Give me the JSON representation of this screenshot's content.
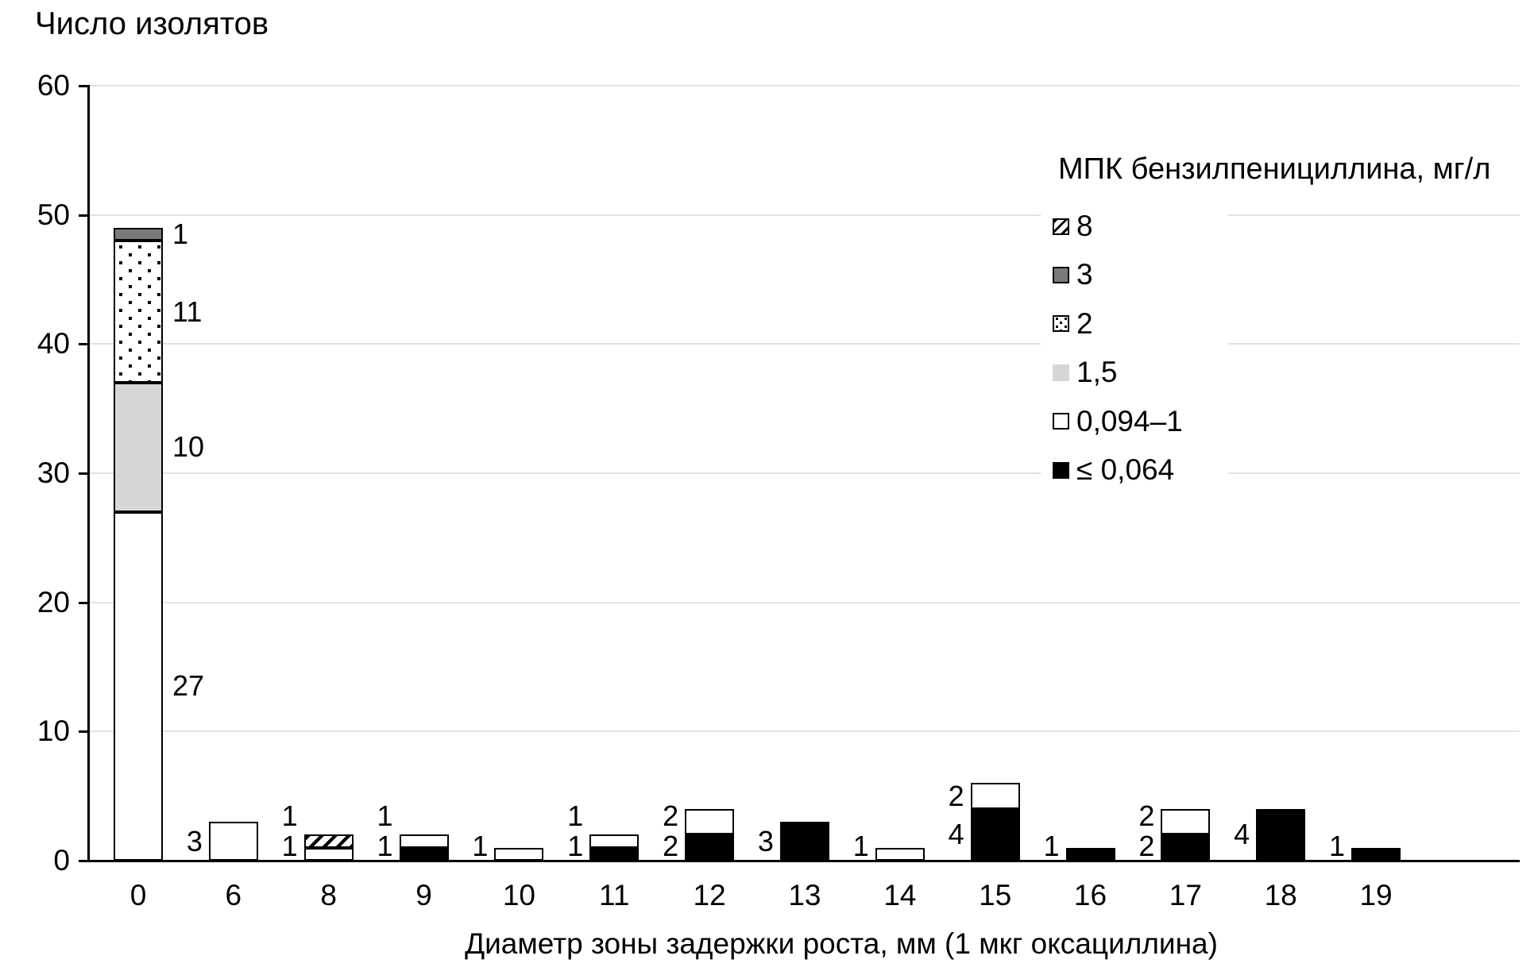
{
  "chart_title": "Число изолятов",
  "x_axis_title": "Диаметр зоны задержки роста, мм (1 мкг оксациллина)",
  "legend": {
    "title": "МПК бензилпенициллина, мг/л",
    "items": [
      {
        "label": "8",
        "style": "hatch"
      },
      {
        "label": "3",
        "style": "darkgray"
      },
      {
        "label": "2",
        "style": "dots"
      },
      {
        "label": "1,5",
        "style": "lightgray"
      },
      {
        "label": "0,094–1",
        "style": "white"
      },
      {
        "label": "≤ 0,064",
        "style": "black"
      }
    ]
  },
  "colors": {
    "black": "#000000",
    "white": "#ffffff",
    "light_gray": "#d6d6d6",
    "dark_gray": "#7a7a7a",
    "gridline": "#e2e2e2",
    "axis": "#000000"
  },
  "chart_data": {
    "type": "bar",
    "stacked": true,
    "title": "Число изолятов",
    "xlabel": "Диаметр зоны задержки роста, мм (1 мкг оксациллина)",
    "ylabel": "Число изолятов",
    "categories": [
      "0",
      "6",
      "8",
      "9",
      "10",
      "11",
      "12",
      "13",
      "14",
      "15",
      "16",
      "17",
      "18",
      "19"
    ],
    "series": [
      {
        "name": "≤ 0,064",
        "style": "black",
        "values": [
          0,
          0,
          0,
          1,
          0,
          1,
          2,
          3,
          0,
          4,
          1,
          2,
          4,
          1
        ]
      },
      {
        "name": "0,094–1",
        "style": "white",
        "values": [
          27,
          3,
          1,
          1,
          1,
          1,
          2,
          0,
          1,
          2,
          0,
          2,
          0,
          0
        ]
      },
      {
        "name": "1,5",
        "style": "lightgray",
        "values": [
          10,
          0,
          0,
          0,
          0,
          0,
          0,
          0,
          0,
          0,
          0,
          0,
          0,
          0
        ]
      },
      {
        "name": "2",
        "style": "dots",
        "values": [
          11,
          0,
          0,
          0,
          0,
          0,
          0,
          0,
          0,
          0,
          0,
          0,
          0,
          0
        ]
      },
      {
        "name": "3",
        "style": "darkgray",
        "values": [
          1,
          0,
          0,
          0,
          0,
          0,
          0,
          0,
          0,
          0,
          0,
          0,
          0,
          0
        ]
      },
      {
        "name": "8",
        "style": "hatch",
        "values": [
          0,
          0,
          1,
          0,
          0,
          0,
          0,
          0,
          0,
          0,
          0,
          0,
          0,
          0
        ]
      }
    ],
    "ylim": [
      0,
      60
    ],
    "yticks": [
      0,
      10,
      20,
      30,
      40,
      50,
      60
    ],
    "grid": true,
    "segment_labels": true,
    "legend_position": "upper right"
  }
}
